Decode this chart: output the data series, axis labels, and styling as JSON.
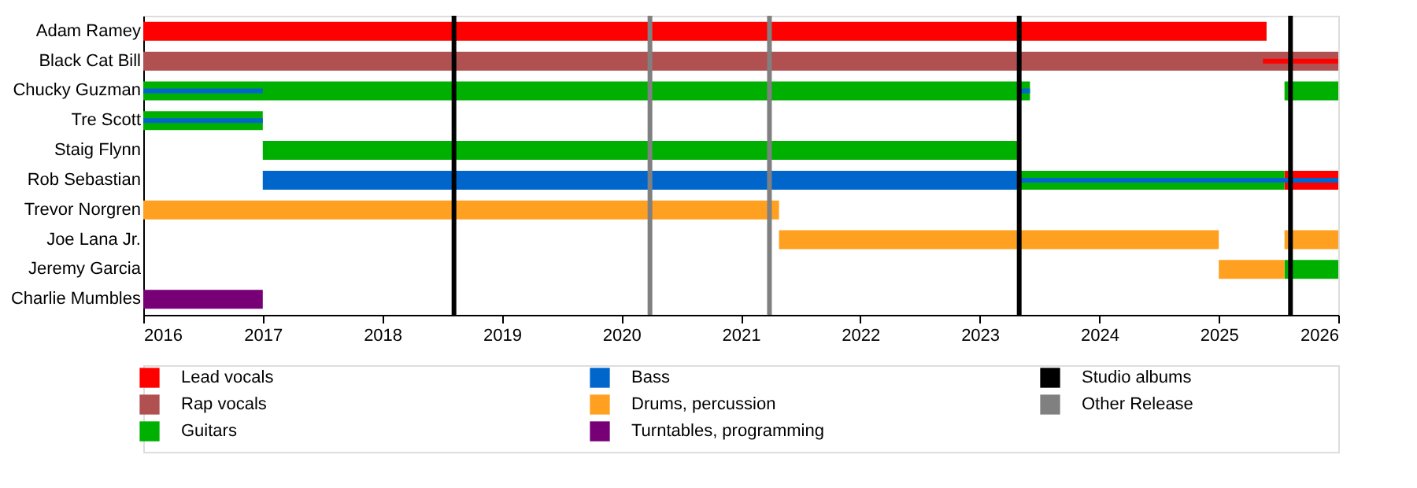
{
  "chart_data": {
    "type": "bar",
    "orientation": "horizontal",
    "categories": [
      "Adam Ramey",
      "Black Cat Bill",
      "Chucky Guzman",
      "Tre Scott",
      "Staig Flynn",
      "Rob Sebastian",
      "Trevor Norgren",
      "Joe Lana Jr.",
      "Jeremy Garcia",
      "Charlie Mumbles"
    ],
    "series": [
      {
        "name": "Lead vocals",
        "color": "#ff0000",
        "base": [
          2016,
          null,
          null,
          null,
          null,
          2025.55,
          null,
          null,
          null,
          null
        ],
        "values": [
          9.4,
          null,
          null,
          null,
          null,
          0.45,
          null,
          null,
          null,
          null
        ]
      },
      {
        "name": "Rap vocals",
        "color": "#b05050",
        "base": [
          null,
          2016,
          null,
          null,
          null,
          null,
          null,
          null,
          null,
          null
        ],
        "values": [
          null,
          10,
          null,
          null,
          null,
          null,
          null,
          null,
          null,
          null
        ]
      },
      {
        "name": "Guitars",
        "color": "#00b000",
        "base": [
          null,
          null,
          2016,
          2016,
          2017,
          2023.33,
          null,
          null,
          2025.55,
          null
        ],
        "values": [
          null,
          null,
          7.42,
          1,
          6.33,
          2.22,
          null,
          null,
          0.45,
          null
        ]
      },
      {
        "name": "Bass",
        "color": "#0066cc",
        "base": [
          null,
          null,
          null,
          null,
          null,
          2017,
          null,
          null,
          null,
          null
        ],
        "values": [
          null,
          null,
          null,
          null,
          null,
          6.33,
          null,
          null,
          null,
          null
        ]
      },
      {
        "name": "Drums, percussion",
        "color": "#ffa020",
        "base": [
          null,
          null,
          null,
          null,
          null,
          null,
          2016,
          2021.32,
          2025,
          null
        ],
        "values": [
          null,
          null,
          null,
          null,
          null,
          null,
          5.32,
          3.68,
          0.55,
          null
        ]
      },
      {
        "name": "Turntables, programming",
        "color": "#770077",
        "base": [
          null,
          null,
          null,
          null,
          null,
          null,
          null,
          null,
          null,
          2016
        ],
        "values": [
          null,
          null,
          null,
          null,
          null,
          null,
          null,
          null,
          null,
          1
        ]
      },
      {
        "color": "#00b000",
        "base": [
          null,
          null,
          2025.55,
          null,
          null,
          null,
          null,
          null,
          null,
          null
        ],
        "values": [
          null,
          null,
          0.45,
          null,
          null,
          null,
          null,
          null,
          null,
          null
        ]
      },
      {
        "color": "#ffa020",
        "base": [
          null,
          null,
          null,
          null,
          null,
          null,
          null,
          2025.55,
          null,
          null
        ],
        "values": [
          null,
          null,
          null,
          null,
          null,
          null,
          null,
          0.45,
          null,
          null
        ]
      },
      {
        "color": "#ff0000",
        "base": [
          null,
          2025.37,
          null,
          null,
          null,
          null,
          null,
          null,
          null,
          null
        ],
        "values": [
          null,
          0.63,
          null,
          null,
          null,
          null,
          null,
          null,
          null,
          null
        ]
      },
      {
        "color": "#0066cc",
        "base": [
          null,
          null,
          2016,
          2016,
          null,
          2023.33,
          null,
          null,
          null,
          null
        ],
        "values": [
          null,
          null,
          1,
          1,
          null,
          2.67,
          null,
          null,
          null,
          null
        ]
      },
      {
        "color": "#0066cc",
        "base": [
          null,
          null,
          2023.33,
          null,
          null,
          null,
          null,
          null,
          null,
          null
        ],
        "values": [
          null,
          null,
          0.09,
          null,
          null,
          null,
          null,
          null,
          null,
          null
        ]
      }
    ],
    "xlim": [
      2016,
      2026
    ],
    "xticks": [
      2016,
      2017,
      2018,
      2019,
      2020,
      2021,
      2022,
      2023,
      2024,
      2025,
      2026
    ],
    "ref_lines": [
      {
        "axis": "x",
        "value": 2018.6,
        "label": "Studio albums",
        "color": "#000000"
      },
      {
        "axis": "x",
        "value": 2020.24,
        "label": "Other Release",
        "color": "#808080"
      },
      {
        "axis": "x",
        "value": 2021.24,
        "color": "#808080"
      },
      {
        "axis": "x",
        "value": 2023.33,
        "color": "#000000"
      },
      {
        "axis": "x",
        "value": 2025.6,
        "color": "#000000"
      }
    ],
    "grid": false,
    "legend": "bottom"
  }
}
